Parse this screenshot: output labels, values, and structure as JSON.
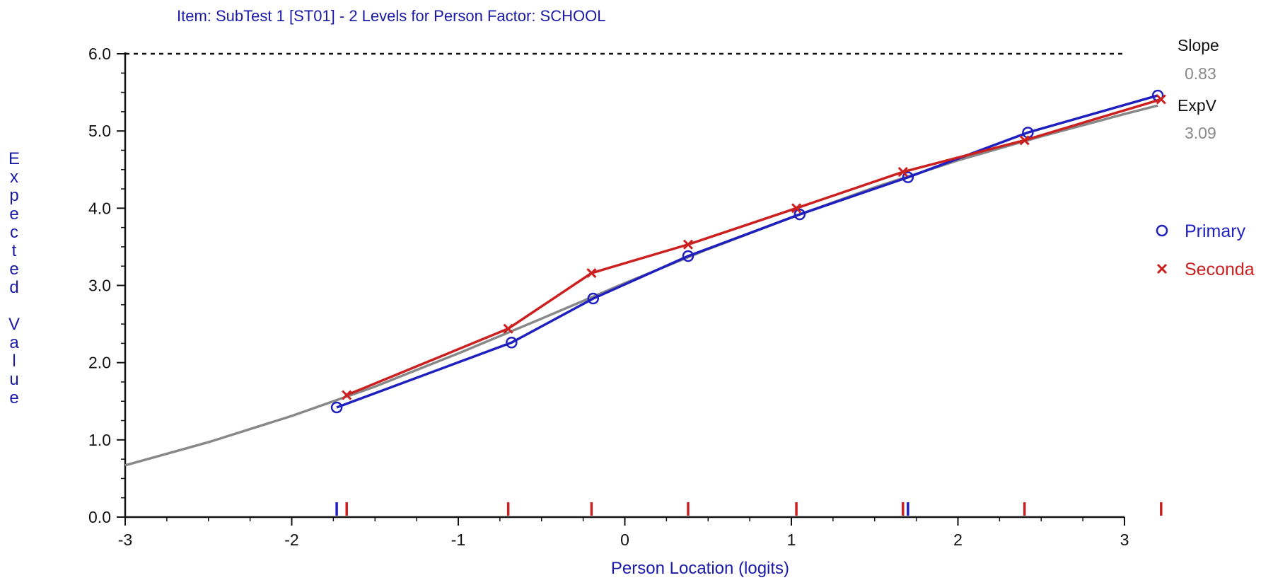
{
  "chart_data": {
    "type": "line",
    "title": "Item: SubTest 1 [ST01] - 2 Levels for Person Factor: SCHOOL",
    "xlabel": "Person Location (logits)",
    "ylabel": "Expected Value",
    "xlim": [
      -3,
      3.2
    ],
    "ylim": [
      0,
      6.0
    ],
    "x_ticks": [
      -3,
      -2,
      -1,
      0,
      1,
      2,
      3
    ],
    "y_ticks": [
      0.0,
      1.0,
      2.0,
      3.0,
      4.0,
      5.0,
      6.0
    ],
    "y_tick_labels": [
      "0.0",
      "1.0",
      "2.0",
      "3.0",
      "4.0",
      "5.0",
      "6.0"
    ],
    "max_line": 6.0,
    "slope_label": "Slope",
    "slope_value": "0.83",
    "expv_label": "ExpV",
    "expv_value": "3.09",
    "expected_curve": {
      "x": [
        -3.0,
        -2.5,
        -2.0,
        -1.5,
        -1.0,
        -0.5,
        0.0,
        0.5,
        1.0,
        1.5,
        2.0,
        2.5,
        3.0,
        3.2
      ],
      "y": [
        0.67,
        0.97,
        1.31,
        1.69,
        2.12,
        2.57,
        3.03,
        3.47,
        3.88,
        4.27,
        4.62,
        4.93,
        5.22,
        5.33
      ],
      "color": "#888888"
    },
    "series": [
      {
        "name": "Primary",
        "marker": "circle",
        "color": "#1f1fbf",
        "x": [
          -1.73,
          -0.68,
          -0.19,
          0.38,
          1.05,
          1.7,
          2.42,
          3.2
        ],
        "y": [
          1.42,
          2.26,
          2.83,
          3.38,
          3.92,
          4.4,
          4.98,
          5.46
        ]
      },
      {
        "name": "Seconda",
        "marker": "cross",
        "color": "#cc1f1f",
        "x": [
          -1.67,
          -0.7,
          -0.2,
          0.38,
          1.03,
          1.67,
          2.4,
          3.22
        ],
        "y": [
          1.58,
          2.44,
          3.16,
          3.53,
          4.0,
          4.47,
          4.88,
          5.41
        ]
      }
    ],
    "rug_marks": [
      {
        "x": -1.73,
        "color": "#1f1fbf"
      },
      {
        "x": -1.67,
        "color": "#cc1f1f"
      },
      {
        "x": -0.7,
        "color": "#cc1f1f"
      },
      {
        "x": -0.2,
        "color": "#cc1f1f"
      },
      {
        "x": 0.38,
        "color": "#cc1f1f"
      },
      {
        "x": 1.03,
        "color": "#cc1f1f"
      },
      {
        "x": 1.67,
        "color": "#cc1f1f"
      },
      {
        "x": 1.7,
        "color": "#1f1fbf"
      },
      {
        "x": 2.4,
        "color": "#cc1f1f"
      },
      {
        "x": 3.22,
        "color": "#cc1f1f"
      }
    ],
    "legend_position": "right"
  }
}
